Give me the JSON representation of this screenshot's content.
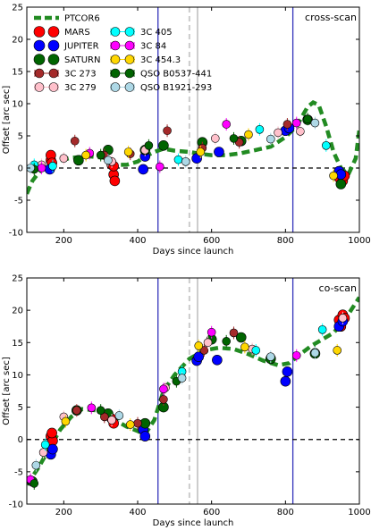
{
  "chart_data": [
    {
      "type": "scatter",
      "annotation": "cross-scan",
      "xlabel": "Days since launch",
      "ylabel": "Offset [arc sec]",
      "xlim": [
        100,
        1000
      ],
      "ylim": [
        -10,
        25
      ],
      "xticks": [
        200,
        400,
        600,
        800,
        1000
      ],
      "yticks": [
        -10,
        -5,
        0,
        5,
        10,
        15,
        20,
        25
      ],
      "legend_placement": "top-left",
      "vlines": [
        {
          "x": 455,
          "color": "#3333bb",
          "style": "solid"
        },
        {
          "x": 540,
          "color": "#cccccc",
          "style": "dashed"
        },
        {
          "x": 562,
          "color": "#cccccc",
          "style": "solid"
        },
        {
          "x": 820,
          "color": "#3333bb",
          "style": "solid"
        }
      ],
      "model": {
        "name": "PTCOR6",
        "x": [
          100,
          115,
          135,
          155,
          180,
          220,
          270,
          310,
          340,
          370,
          400,
          420,
          445,
          470,
          500,
          540,
          570,
          600,
          640,
          680,
          720,
          760,
          800,
          830,
          860,
          875,
          890,
          910,
          930,
          950,
          970,
          990,
          1000
        ],
        "y": [
          -4,
          -2,
          -0.5,
          0.3,
          1,
          1.6,
          1.8,
          1.6,
          0.5,
          0.5,
          1,
          1.8,
          2.5,
          3,
          2.7,
          2.5,
          2.2,
          2,
          2,
          2.3,
          2.8,
          3.3,
          4.8,
          6.5,
          9.5,
          10.2,
          9.8,
          6.5,
          2.5,
          0,
          -1,
          1.5,
          6
        ]
      },
      "series": [
        {
          "name": "MARS",
          "points": [
            [
              165,
              1.2
            ],
            [
              165,
              2
            ],
            [
              168,
              0.8
            ],
            [
              335,
              -1
            ],
            [
              338,
              -2
            ],
            [
              330,
              0.5
            ],
            [
              335,
              0.3
            ],
            [
              945,
              -1.5
            ],
            [
              955,
              -2
            ],
            [
              960,
              -1.2
            ]
          ]
        },
        {
          "name": "JUPITER",
          "points": [
            [
              162,
              -0.2
            ],
            [
              415,
              -0.2
            ],
            [
              420,
              1.8
            ],
            [
              560,
              1.5
            ],
            [
              620,
              2.5
            ],
            [
              800,
              5.8
            ],
            [
              810,
              6.2
            ],
            [
              945,
              -0.5
            ],
            [
              950,
              -1
            ]
          ]
        },
        {
          "name": "SATURN",
          "points": [
            [
              240,
              1.2
            ],
            [
              320,
              2.8
            ],
            [
              420,
              2.8
            ],
            [
              470,
              3.5
            ],
            [
              575,
              4
            ],
            [
              680,
              4.2
            ],
            [
              860,
              7.5
            ],
            [
              950,
              -2.5
            ]
          ]
        },
        {
          "name": "3C 273",
          "points": [
            [
              230,
              4.2
            ],
            [
              310,
              2
            ],
            [
              380,
              2.2
            ],
            [
              480,
              5.8
            ],
            [
              575,
              3.1
            ],
            [
              675,
              4
            ],
            [
              805,
              6.8
            ]
          ]
        },
        {
          "name": "3C 279",
          "points": [
            [
              140,
              0.5
            ],
            [
              200,
              1.5
            ],
            [
              330,
              1
            ],
            [
              420,
              2.8
            ],
            [
              610,
              4.6
            ],
            [
              780,
              5.5
            ],
            [
              840,
              5.7
            ]
          ]
        },
        {
          "name": "3C 405",
          "points": [
            [
              120,
              0.5
            ],
            [
              170,
              0.3
            ],
            [
              510,
              1.3
            ],
            [
              730,
              6
            ],
            [
              910,
              3.5
            ]
          ]
        },
        {
          "name": "3C 84",
          "points": [
            [
              140,
              0
            ],
            [
              270,
              2.3
            ],
            [
              460,
              0.2
            ],
            [
              640,
              6.8
            ],
            [
              830,
              7
            ]
          ]
        },
        {
          "name": "3C 454.3",
          "points": [
            [
              260,
              2
            ],
            [
              375,
              2.5
            ],
            [
              570,
              2.5
            ],
            [
              700,
              5.2
            ],
            [
              930,
              -1.2
            ]
          ]
        },
        {
          "name": "QSO B0537-441",
          "points": [
            [
              120,
              -0.2
            ],
            [
              300,
              2
            ],
            [
              430,
              3.5
            ],
            [
              660,
              4.6
            ],
            [
              860,
              7.6
            ]
          ]
        },
        {
          "name": "QSO B1921-293",
          "points": [
            [
              110,
              0
            ],
            [
              320,
              1.2
            ],
            [
              530,
              1
            ],
            [
              760,
              4.5
            ],
            [
              880,
              7
            ]
          ]
        }
      ]
    },
    {
      "type": "scatter",
      "annotation": "co-scan",
      "xlabel": "Days since launch",
      "ylabel": "Offset [arc sec]",
      "xlim": [
        100,
        1000
      ],
      "ylim": [
        -10,
        25
      ],
      "xticks": [
        200,
        400,
        600,
        800,
        1000
      ],
      "yticks": [
        -10,
        -5,
        0,
        5,
        10,
        15,
        20,
        25
      ],
      "vlines": [
        {
          "x": 455,
          "color": "#3333bb",
          "style": "solid"
        },
        {
          "x": 540,
          "color": "#cccccc",
          "style": "dashed"
        },
        {
          "x": 562,
          "color": "#cccccc",
          "style": "solid"
        },
        {
          "x": 820,
          "color": "#3333bb",
          "style": "solid"
        }
      ],
      "model": {
        "name": "PTCOR6",
        "x": [
          100,
          130,
          160,
          190,
          220,
          250,
          290,
          330,
          370,
          400,
          420,
          445,
          470,
          500,
          540,
          580,
          620,
          660,
          700,
          740,
          780,
          810,
          840,
          870,
          900,
          930,
          960,
          1000
        ],
        "y": [
          -7,
          -4.5,
          -1.5,
          1.5,
          3.5,
          4.7,
          4.5,
          3.3,
          2,
          1.3,
          0.8,
          3,
          7.5,
          10,
          12.5,
          13.8,
          14.2,
          14,
          13.2,
          12.2,
          11.5,
          11.8,
          13.2,
          14.5,
          15.5,
          16.5,
          18.5,
          22
        ]
      },
      "series": [
        {
          "name": "MARS",
          "points": [
            [
              165,
              0.5
            ],
            [
              170,
              -0.2
            ],
            [
              168,
              1
            ],
            [
              330,
              3.2
            ],
            [
              335,
              2.5
            ],
            [
              945,
              18.5
            ],
            [
              950,
              17.5
            ],
            [
              955,
              19.3
            ],
            [
              960,
              18.8
            ]
          ]
        },
        {
          "name": "JUPITER",
          "points": [
            [
              165,
              -2.3
            ],
            [
              170,
              -1.5
            ],
            [
              415,
              1.5
            ],
            [
              420,
              0.5
            ],
            [
              560,
              12.2
            ],
            [
              565,
              12.8
            ],
            [
              615,
              12.3
            ],
            [
              800,
              9
            ],
            [
              805,
              10.5
            ],
            [
              945,
              17.5
            ],
            [
              955,
              18.3
            ]
          ]
        },
        {
          "name": "SATURN",
          "points": [
            [
              115,
              -6.5
            ],
            [
              235,
              4.5
            ],
            [
              320,
              4
            ],
            [
              420,
              2.5
            ],
            [
              470,
              5
            ],
            [
              600,
              15.5
            ],
            [
              680,
              15.8
            ],
            [
              760,
              12.5
            ],
            [
              880,
              13.3
            ]
          ]
        },
        {
          "name": "3C 273",
          "points": [
            [
              235,
              4.5
            ],
            [
              310,
              3.5
            ],
            [
              400,
              2.5
            ],
            [
              470,
              6.2
            ],
            [
              580,
              13.8
            ],
            [
              660,
              16.5
            ]
          ]
        },
        {
          "name": "3C 279",
          "points": [
            [
              145,
              -2
            ],
            [
              200,
              3.5
            ],
            [
              330,
              3
            ],
            [
              475,
              8
            ],
            [
              590,
              15
            ],
            [
              710,
              14
            ],
            [
              955,
              18.8
            ]
          ]
        },
        {
          "name": "3C 405",
          "points": [
            [
              150,
              -0.8
            ],
            [
              520,
              10.5
            ],
            [
              720,
              13.8
            ],
            [
              900,
              17
            ]
          ]
        },
        {
          "name": "3C 84",
          "points": [
            [
              110,
              -6.2
            ],
            [
              275,
              4.9
            ],
            [
              470,
              7.8
            ],
            [
              600,
              16.6
            ],
            [
              830,
              13
            ]
          ]
        },
        {
          "name": "3C 454.3",
          "points": [
            [
              205,
              2.8
            ],
            [
              380,
              2.3
            ],
            [
              565,
              14.5
            ],
            [
              690,
              14.3
            ],
            [
              940,
              13.8
            ]
          ]
        },
        {
          "name": "QSO B0537-441",
          "points": [
            [
              120,
              -6.8
            ],
            [
              300,
              4.5
            ],
            [
              505,
              9
            ],
            [
              640,
              15.2
            ],
            [
              880,
              13.5
            ]
          ]
        },
        {
          "name": "QSO B1921-293",
          "points": [
            [
              125,
              -4
            ],
            [
              350,
              3.7
            ],
            [
              520,
              9.5
            ],
            [
              760,
              12.8
            ],
            [
              880,
              13.4
            ]
          ]
        }
      ]
    }
  ],
  "legend": {
    "entries": [
      {
        "label": "PTCOR6",
        "color": "#228b22",
        "kind": "dashed-line"
      },
      {
        "label": "MARS",
        "color": "#ff0000",
        "kind": "big-marker"
      },
      {
        "label": "JUPITER",
        "color": "#0000ff",
        "kind": "big-marker"
      },
      {
        "label": "SATURN",
        "color": "#006400",
        "kind": "big-marker"
      },
      {
        "label": "3C 273",
        "color": "#a52a2a",
        "kind": "errbar-marker"
      },
      {
        "label": "3C 279",
        "color": "#ffc0cb",
        "kind": "errbar-marker"
      },
      {
        "label": "3C 405",
        "color": "#00ffff",
        "kind": "errbar-marker"
      },
      {
        "label": "3C 84",
        "color": "#ff00ff",
        "kind": "errbar-marker"
      },
      {
        "label": "3C 454.3",
        "color": "#ffd700",
        "kind": "errbar-marker"
      },
      {
        "label": "QSO B0537-441",
        "color": "#006400",
        "kind": "errbar-marker"
      },
      {
        "label": "QSO B1921-293",
        "color": "#add8e6",
        "kind": "errbar-marker"
      }
    ]
  },
  "colors": {
    "MARS": "#ff0000",
    "JUPITER": "#0000ff",
    "SATURN": "#006400",
    "3C 273": "#a52a2a",
    "3C 279": "#ffc0cb",
    "3C 405": "#00ffff",
    "3C 84": "#ff00ff",
    "3C 454.3": "#ffd700",
    "QSO B0537-441": "#006400",
    "QSO B1921-293": "#add8e6",
    "PTCOR6": "#228b22"
  }
}
